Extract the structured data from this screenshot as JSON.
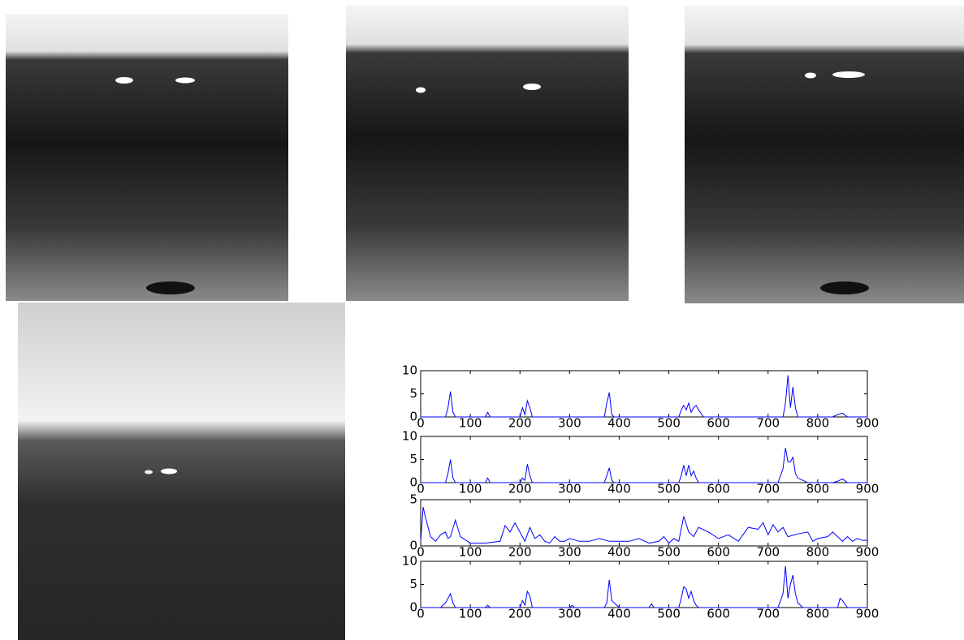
{
  "chart_data": [
    {
      "type": "line",
      "color": "#0000ff",
      "x": [
        0,
        50,
        55,
        60,
        65,
        70,
        130,
        135,
        140,
        200,
        205,
        210,
        215,
        220,
        225,
        230,
        370,
        375,
        380,
        385,
        390,
        520,
        525,
        530,
        535,
        540,
        545,
        550,
        555,
        560,
        570,
        730,
        735,
        740,
        745,
        750,
        755,
        760,
        830,
        840,
        850,
        860,
        900
      ],
      "values": [
        0,
        0,
        2,
        5.5,
        1,
        0,
        0,
        1,
        0,
        0,
        2,
        0.5,
        3.5,
        2,
        0,
        0,
        0,
        3,
        5.3,
        0.5,
        0,
        0,
        1.5,
        2.5,
        1.5,
        3,
        1,
        2,
        2.5,
        1.5,
        0,
        0,
        3,
        9,
        2,
        6.5,
        2,
        0,
        0,
        0.5,
        0.8,
        0,
        0
      ],
      "xlim": [
        0,
        900
      ],
      "xticks": [
        0,
        100,
        200,
        300,
        400,
        500,
        600,
        700,
        800,
        900
      ],
      "ylim": [
        0,
        10
      ],
      "yticks": [
        0,
        5,
        10
      ]
    },
    {
      "type": "line",
      "color": "#0000ff",
      "x": [
        0,
        50,
        55,
        60,
        65,
        70,
        130,
        135,
        140,
        200,
        205,
        210,
        215,
        220,
        225,
        230,
        370,
        375,
        380,
        385,
        390,
        520,
        525,
        530,
        535,
        540,
        545,
        550,
        555,
        560,
        570,
        720,
        730,
        735,
        740,
        745,
        750,
        755,
        760,
        770,
        780,
        830,
        840,
        850,
        860,
        900
      ],
      "values": [
        0,
        0,
        2,
        5,
        1,
        0,
        0,
        1,
        0,
        0,
        1,
        0.5,
        4,
        1.5,
        0,
        0,
        0,
        1.5,
        3.2,
        0.5,
        0,
        0,
        1.5,
        3.8,
        1.5,
        3.8,
        1.5,
        2.5,
        1,
        0,
        0,
        0,
        3,
        7.5,
        4.5,
        4.5,
        5.5,
        2,
        1,
        0.5,
        0,
        0,
        0.3,
        0.8,
        0,
        0
      ],
      "xlim": [
        0,
        900
      ],
      "xticks": [
        0,
        100,
        200,
        300,
        400,
        500,
        600,
        700,
        800,
        900
      ],
      "ylim": [
        0,
        10
      ],
      "yticks": [
        0,
        5,
        10
      ]
    },
    {
      "type": "line",
      "color": "#0000ff",
      "x": [
        0,
        5,
        10,
        20,
        30,
        40,
        50,
        55,
        60,
        70,
        80,
        100,
        130,
        160,
        170,
        180,
        190,
        200,
        210,
        220,
        230,
        240,
        250,
        260,
        270,
        280,
        290,
        300,
        320,
        340,
        360,
        380,
        400,
        420,
        440,
        460,
        480,
        490,
        500,
        510,
        520,
        530,
        540,
        550,
        560,
        580,
        600,
        620,
        640,
        660,
        680,
        690,
        700,
        710,
        720,
        730,
        740,
        760,
        780,
        790,
        800,
        820,
        830,
        850,
        860,
        870,
        880,
        890,
        900
      ],
      "values": [
        0.5,
        4.2,
        3,
        1,
        0.5,
        1.2,
        1.5,
        0.8,
        1,
        2.8,
        1,
        0.3,
        0.3,
        0.5,
        2.2,
        1.5,
        2.5,
        1.5,
        0.5,
        2,
        0.8,
        1.2,
        0.5,
        0.3,
        1,
        0.5,
        0.5,
        0.8,
        0.5,
        0.5,
        0.8,
        0.5,
        0.5,
        0.5,
        0.8,
        0.3,
        0.5,
        1,
        0.3,
        0.8,
        0.5,
        3.2,
        1.5,
        1,
        2,
        1.5,
        0.8,
        1.2,
        0.5,
        2,
        1.8,
        2.5,
        1.2,
        2.3,
        1.5,
        2,
        1,
        1.3,
        1.5,
        0.5,
        0.8,
        1,
        1.5,
        0.5,
        1,
        0.5,
        0.8,
        0.6,
        0.6
      ],
      "xlim": [
        0,
        900
      ],
      "xticks": [
        0,
        100,
        200,
        300,
        400,
        500,
        600,
        700,
        800,
        900
      ],
      "ylim": [
        0,
        5
      ],
      "yticks": [
        0,
        5
      ]
    },
    {
      "type": "line",
      "color": "#0000ff",
      "x": [
        0,
        40,
        50,
        60,
        65,
        70,
        130,
        135,
        140,
        200,
        205,
        210,
        215,
        220,
        225,
        300,
        305,
        310,
        370,
        375,
        380,
        385,
        390,
        400,
        460,
        465,
        470,
        520,
        525,
        530,
        535,
        540,
        545,
        550,
        555,
        560,
        570,
        720,
        730,
        735,
        740,
        745,
        750,
        755,
        760,
        770,
        840,
        845,
        850,
        860,
        900
      ],
      "values": [
        0,
        0,
        1,
        3,
        1,
        0,
        0,
        0.5,
        0,
        0,
        1.5,
        0.5,
        3.5,
        2.5,
        0,
        0,
        0.5,
        0,
        0,
        1,
        6,
        1.5,
        1,
        0,
        0,
        0.8,
        0,
        0,
        2,
        4.5,
        4,
        2,
        3.5,
        1.5,
        0.5,
        0,
        0,
        0,
        3,
        9,
        2,
        5,
        7,
        3,
        1,
        0,
        0,
        2,
        1.5,
        0,
        0
      ],
      "xlim": [
        0,
        900
      ],
      "xticks": [
        0,
        100,
        200,
        300,
        400,
        500,
        600,
        700,
        800,
        900
      ],
      "ylim": [
        0,
        10
      ],
      "yticks": [
        0,
        5,
        10
      ]
    }
  ]
}
